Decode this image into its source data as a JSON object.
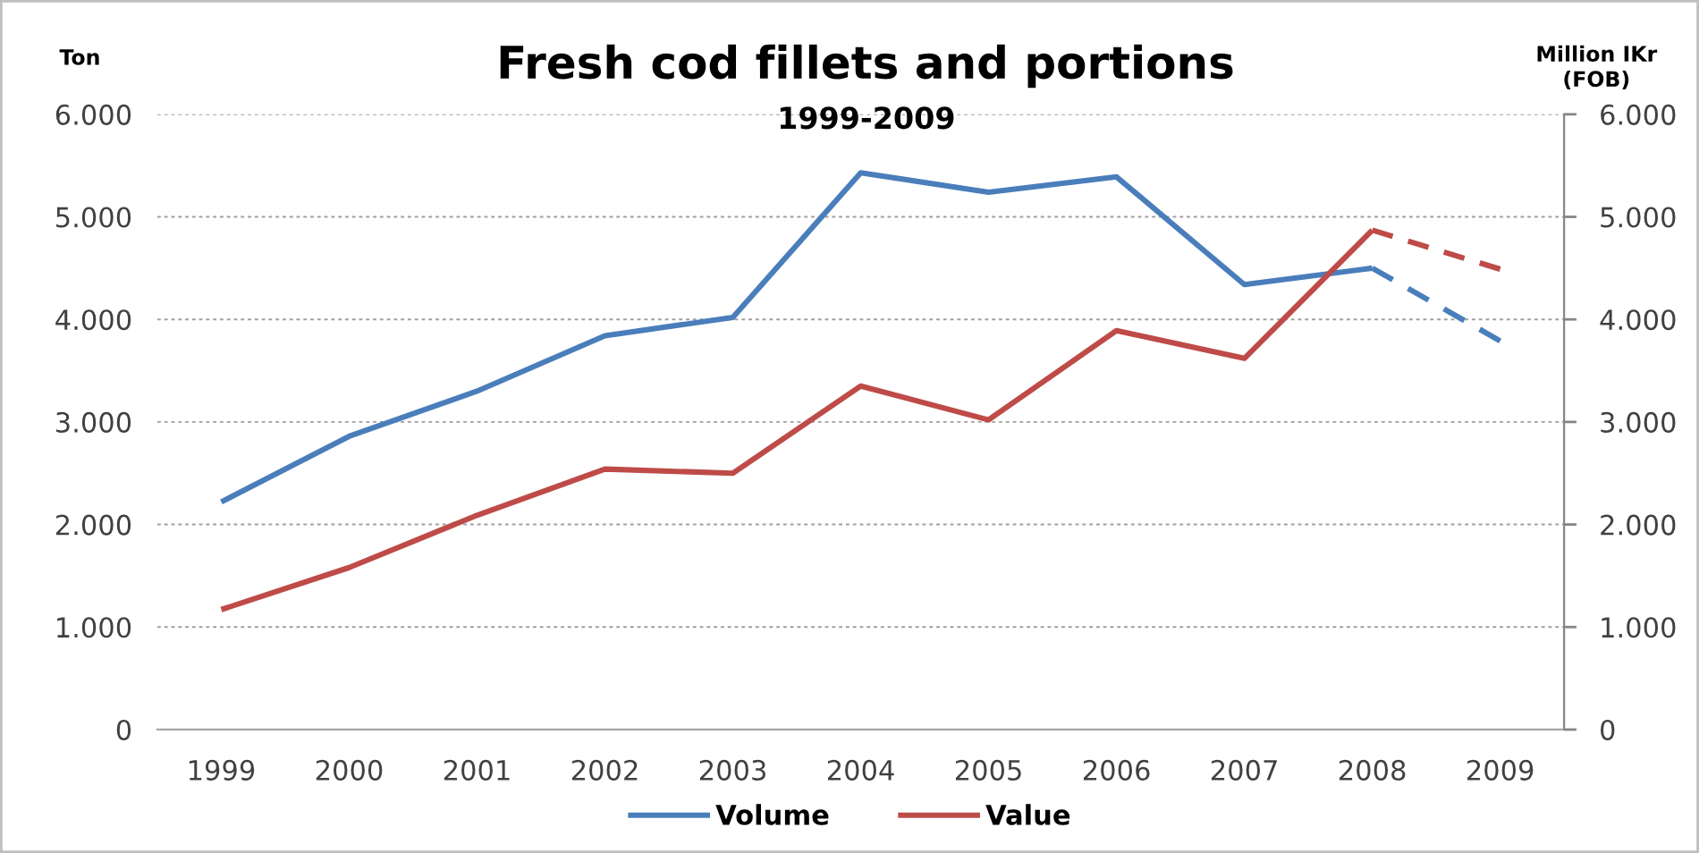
{
  "chart_data": {
    "type": "line",
    "title": "Fresh cod fillets and portions",
    "subtitle": "1999-2009",
    "ylabel": "Ton",
    "y2label": "Million IKr\n(FOB)",
    "categories": [
      "1999",
      "2000",
      "2001",
      "2002",
      "2003",
      "2004",
      "2005",
      "2006",
      "2007",
      "2008",
      "2009"
    ],
    "series": [
      {
        "name": "Volume",
        "color": "#4a7ebb",
        "values": [
          2220,
          2860,
          3300,
          3840,
          4020,
          5430,
          5240,
          5390,
          4340,
          4500,
          null
        ]
      },
      {
        "color": "#4a7ebb",
        "line_style": "dashed",
        "values": [
          null,
          null,
          null,
          null,
          null,
          null,
          null,
          null,
          null,
          4500,
          3790
        ]
      },
      {
        "name": "Value",
        "color": "#be4b48",
        "axis": "y2",
        "values": [
          1170,
          1580,
          2090,
          2540,
          2500,
          3350,
          3020,
          3890,
          3620,
          4870,
          null
        ]
      },
      {
        "color": "#be4b48",
        "axis": "y2",
        "line_style": "dashed",
        "values": [
          null,
          null,
          null,
          null,
          null,
          null,
          null,
          null,
          null,
          4870,
          4490
        ]
      }
    ],
    "ylim": [
      0,
      6000
    ],
    "yticks": [
      0,
      {
        "value": 1000,
        "label": "1.000"
      },
      {
        "value": 2000,
        "label": "2.000"
      },
      {
        "value": 3000,
        "label": "3.000"
      },
      {
        "value": 4000,
        "label": "4.000"
      },
      {
        "value": 5000,
        "label": "5.000"
      },
      {
        "value": 6000,
        "label": "6.000"
      }
    ],
    "y2lim": [
      0,
      6000
    ],
    "y2ticks": [
      0,
      {
        "value": 1000,
        "label": "1.000"
      },
      {
        "value": 2000,
        "label": "2.000"
      },
      {
        "value": 3000,
        "label": "3.000"
      },
      {
        "value": 4000,
        "label": "4.000"
      },
      {
        "value": 5000,
        "label": "5.000"
      },
      {
        "value": 6000,
        "label": "6.000"
      }
    ],
    "grid": "y",
    "legend": "bottom",
    "line_style": "solid"
  }
}
